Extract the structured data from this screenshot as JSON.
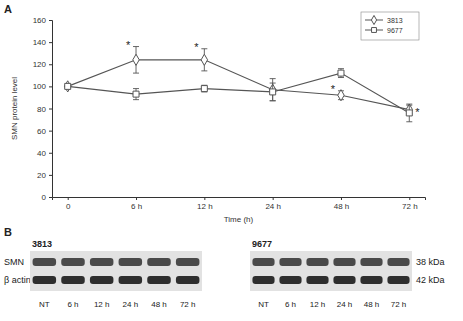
{
  "chart_data": {
    "type": "line",
    "x_label": "Time (h)",
    "y_label": "SMN protein level",
    "categories": [
      "0",
      "6 h",
      "12 h",
      "24 h",
      "48 h",
      "72 h"
    ],
    "series": [
      {
        "name": "3813",
        "color": "#555555",
        "marker": "diamond",
        "values": [
          100,
          124,
          124,
          97,
          92,
          79
        ],
        "errors": [
          0,
          12,
          10,
          10,
          4,
          4
        ],
        "significance": [
          null,
          "*",
          "*",
          null,
          "*",
          null
        ]
      },
      {
        "name": "9677",
        "color": "#555555",
        "marker": "square",
        "values": [
          100,
          93,
          98,
          95,
          112,
          76
        ],
        "errors": [
          0,
          5,
          3,
          8,
          4,
          8
        ],
        "significance": [
          null,
          null,
          null,
          null,
          null,
          "*"
        ]
      }
    ],
    "ylim": [
      0,
      160
    ],
    "yticks": [
      0,
      20,
      40,
      60,
      80,
      100,
      120,
      140,
      160
    ],
    "grid": false,
    "legend": "upper right"
  },
  "figure": {
    "panel_a_label": "A",
    "panel_b_label": "B",
    "blot": {
      "rows": [
        "SMN",
        "β actin"
      ],
      "sizes": [
        "38 kDa",
        "42 kDa"
      ],
      "groups": [
        {
          "label": "3813",
          "lanes": [
            "NT",
            "6 h",
            "12 h",
            "24 h",
            "48 h",
            "72 h"
          ]
        },
        {
          "label": "9677",
          "lanes": [
            "NT",
            "6 h",
            "12 h",
            "24 h",
            "48 h",
            "72 h"
          ]
        }
      ]
    }
  }
}
